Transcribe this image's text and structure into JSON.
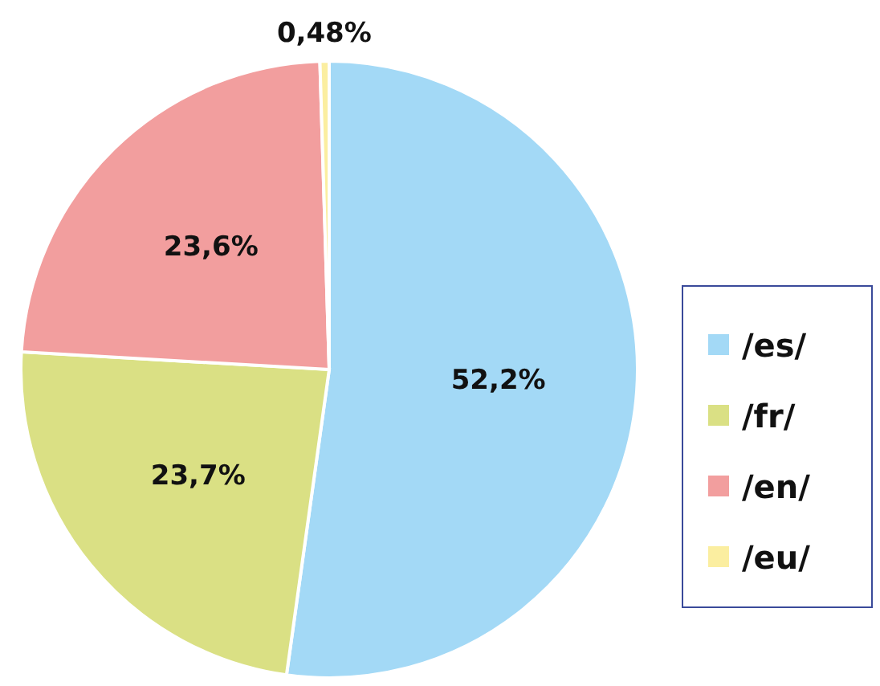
{
  "chart_data": {
    "type": "pie",
    "categories": [
      "/es/",
      "/fr/",
      "/en/",
      "/eu/"
    ],
    "values": [
      52.2,
      23.7,
      23.6,
      0.48
    ],
    "colors": [
      "#a3d9f6",
      "#dae084",
      "#f29e9e",
      "#fbeea0"
    ],
    "value_labels": [
      "52,2%",
      "23,7%",
      "23,6%",
      "0,48%"
    ],
    "legend": "right"
  }
}
